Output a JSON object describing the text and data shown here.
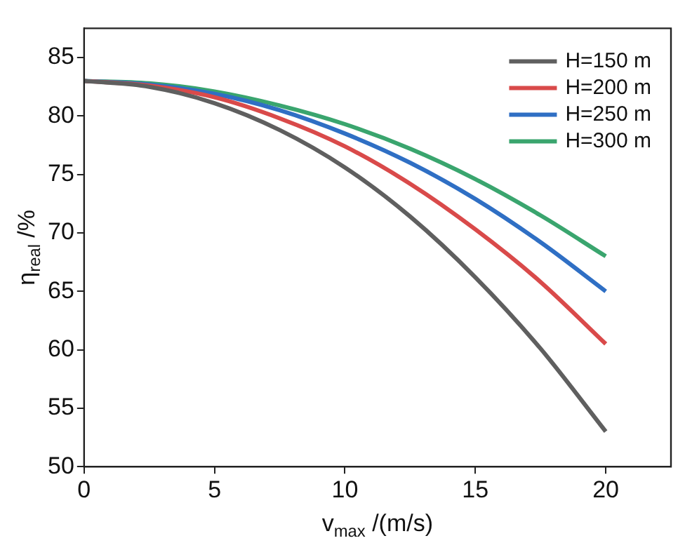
{
  "chart_data": {
    "type": "line",
    "xlabel": "v$_{max}$ /(m/s)",
    "ylabel": "η$_{real}$ /%",
    "x": [
      0,
      2.5,
      5,
      7.5,
      10,
      12.5,
      15,
      17.5,
      20
    ],
    "series": [
      {
        "name": "H=150 m",
        "color": "#5f5f5f",
        "values": [
          83,
          82.5,
          81.1,
          78.8,
          75.6,
          71.4,
          66.2,
          60.1,
          53
        ]
      },
      {
        "name": "H=200 m",
        "color": "#d94a4a",
        "values": [
          83,
          82.6,
          81.6,
          79.8,
          77.4,
          74.2,
          70.3,
          65.8,
          60.5
        ]
      },
      {
        "name": "H=250 m",
        "color": "#2f6fc4",
        "values": [
          83,
          82.7,
          81.9,
          80.5,
          78.5,
          76,
          72.9,
          69.2,
          65
        ]
      },
      {
        "name": "H=300 m",
        "color": "#3aa56e",
        "values": [
          83,
          82.8,
          82.1,
          80.9,
          79.3,
          77.2,
          74.6,
          71.5,
          68
        ]
      }
    ],
    "xlim": [
      0,
      22.5
    ],
    "xticks": [
      0,
      5,
      10,
      15,
      20
    ],
    "ylim": [
      50,
      87.5
    ],
    "yticks": [
      50,
      55,
      60,
      65,
      70,
      75,
      80,
      85
    ],
    "grid": false,
    "legend": "top right",
    "line_style": "solid",
    "marker": "none"
  }
}
